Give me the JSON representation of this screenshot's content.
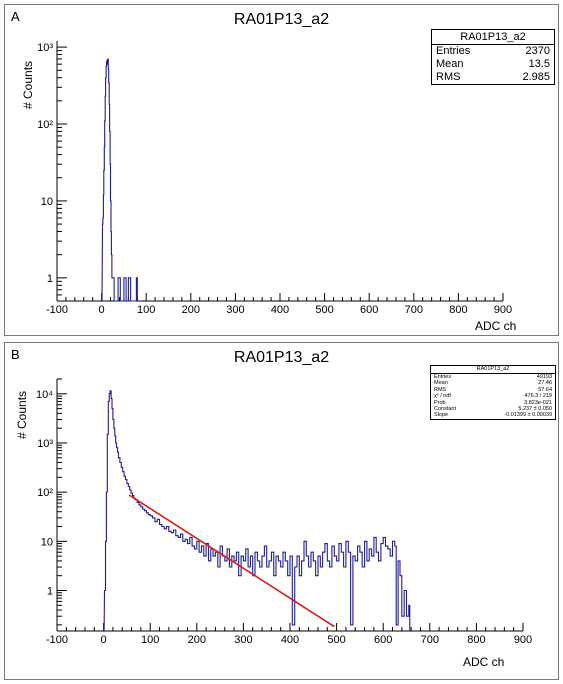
{
  "chart_data": [
    {
      "type": "histogram",
      "panel_letter": "A",
      "title": "RA01P13_a2",
      "xlabel": "ADC ch",
      "ylabel": "# Counts",
      "xlim": [
        -100,
        900
      ],
      "ylim": [
        0.5,
        1200
      ],
      "y_scale": "log",
      "x_ticks": [
        "-100",
        "0",
        "100",
        "200",
        "300",
        "400",
        "500",
        "600",
        "700",
        "800",
        "900"
      ],
      "y_ticks": [
        "1",
        "10",
        "10²",
        "10³"
      ],
      "color": "#1f1f8f",
      "stats": {
        "name": "RA01P13_a2",
        "rows": [
          {
            "label": "Entries",
            "value": "2370"
          },
          {
            "label": "Mean",
            "value": "13.5"
          },
          {
            "label": "RMS",
            "value": "2.985"
          }
        ]
      },
      "histogram": [
        [
          2,
          5
        ],
        [
          3,
          6
        ],
        [
          4,
          12
        ],
        [
          5,
          25
        ],
        [
          6,
          50
        ],
        [
          7,
          110
        ],
        [
          8,
          230
        ],
        [
          9,
          400
        ],
        [
          10,
          560
        ],
        [
          11,
          640
        ],
        [
          12,
          680
        ],
        [
          13,
          600
        ],
        [
          14,
          700
        ],
        [
          15,
          520
        ],
        [
          16,
          340
        ],
        [
          17,
          180
        ],
        [
          18,
          80
        ],
        [
          19,
          30
        ],
        [
          20,
          10
        ],
        [
          21,
          4
        ],
        [
          22,
          2
        ],
        [
          23,
          1
        ],
        [
          37,
          1
        ],
        [
          50,
          1
        ],
        [
          60,
          1
        ],
        [
          78,
          1
        ]
      ]
    },
    {
      "type": "histogram",
      "panel_letter": "B",
      "title": "RA01P13_a2",
      "xlabel": "ADC ch",
      "ylabel": "# Counts",
      "xlim": [
        -100,
        900
      ],
      "ylim": [
        0.15,
        20000
      ],
      "y_scale": "log",
      "x_ticks": [
        "-100",
        "0",
        "100",
        "200",
        "300",
        "400",
        "500",
        "600",
        "700",
        "800",
        "900"
      ],
      "y_ticks": [
        "1",
        "10",
        "10²",
        "10³",
        "10⁴"
      ],
      "color": "#1f1f8f",
      "fit_color": "#dd1a1a",
      "fit": {
        "constant": 5.237,
        "slope": -0.01399,
        "x_range": [
          55,
          495
        ]
      },
      "stats": {
        "name": "RA01P13_a2",
        "rows": [
          {
            "label": "Entries",
            "value": "49193"
          },
          {
            "label": "Mean",
            "value": "27.46"
          },
          {
            "label": "RMS",
            "value": "57.64"
          },
          {
            "label": "χ² / ndf",
            "value": "476.3 / 219"
          },
          {
            "label": "Prob",
            "value": "3.823e-021"
          },
          {
            "label": "Constant",
            "value": "5.237 ± 0.050"
          },
          {
            "label": "Slope",
            "value": "-0.01399 ± 0.00039"
          }
        ]
      },
      "histogram": [
        [
          2,
          1
        ],
        [
          4,
          10
        ],
        [
          6,
          100
        ],
        [
          8,
          1500
        ],
        [
          10,
          7000
        ],
        [
          12,
          10000
        ],
        [
          14,
          11500
        ],
        [
          16,
          8000
        ],
        [
          18,
          5000
        ],
        [
          20,
          3000
        ],
        [
          22,
          2000
        ],
        [
          24,
          1400
        ],
        [
          26,
          1000
        ],
        [
          28,
          800
        ],
        [
          30,
          650
        ],
        [
          32,
          500
        ],
        [
          35,
          400
        ],
        [
          38,
          320
        ],
        [
          41,
          260
        ],
        [
          44,
          210
        ],
        [
          47,
          180
        ],
        [
          50,
          150
        ],
        [
          53,
          130
        ],
        [
          56,
          110
        ],
        [
          59,
          95
        ],
        [
          62,
          85
        ],
        [
          65,
          75
        ],
        [
          68,
          70
        ],
        [
          72,
          62
        ],
        [
          76,
          55
        ],
        [
          80,
          50
        ],
        [
          84,
          45
        ],
        [
          88,
          42
        ],
        [
          92,
          38
        ],
        [
          96,
          35
        ],
        [
          100,
          33
        ],
        [
          105,
          30
        ],
        [
          110,
          25
        ],
        [
          115,
          28
        ],
        [
          120,
          22
        ],
        [
          125,
          20
        ],
        [
          130,
          18
        ],
        [
          135,
          20
        ],
        [
          140,
          16
        ],
        [
          145,
          15
        ],
        [
          150,
          17
        ],
        [
          155,
          13
        ],
        [
          160,
          12
        ],
        [
          165,
          14
        ],
        [
          170,
          10
        ],
        [
          175,
          11
        ],
        [
          180,
          9
        ],
        [
          185,
          12
        ],
        [
          190,
          8
        ],
        [
          195,
          7
        ],
        [
          200,
          10
        ],
        [
          205,
          6
        ],
        [
          210,
          8
        ],
        [
          215,
          5
        ],
        [
          220,
          9
        ],
        [
          225,
          4
        ],
        [
          230,
          7
        ],
        [
          235,
          5
        ],
        [
          240,
          6
        ],
        [
          245,
          3
        ],
        [
          250,
          8
        ],
        [
          255,
          5
        ],
        [
          260,
          4
        ],
        [
          265,
          7
        ],
        [
          270,
          3
        ],
        [
          275,
          5
        ],
        [
          280,
          4
        ],
        [
          285,
          6
        ],
        [
          290,
          2
        ],
        [
          295,
          5
        ],
        [
          300,
          4
        ],
        [
          305,
          7
        ],
        [
          310,
          3
        ],
        [
          315,
          5
        ],
        [
          320,
          2
        ],
        [
          325,
          6
        ],
        [
          330,
          4
        ],
        [
          335,
          3
        ],
        [
          340,
          5
        ],
        [
          345,
          8
        ],
        [
          350,
          3
        ],
        [
          355,
          4
        ],
        [
          360,
          6
        ],
        [
          365,
          2
        ],
        [
          370,
          5
        ],
        [
          375,
          4
        ],
        [
          380,
          3
        ],
        [
          385,
          6
        ],
        [
          390,
          4
        ],
        [
          395,
          2
        ],
        [
          400,
          5
        ],
        [
          405,
          0.2
        ],
        [
          410,
          3
        ],
        [
          415,
          5
        ],
        [
          420,
          2
        ],
        [
          425,
          4
        ],
        [
          430,
          10
        ],
        [
          435,
          5
        ],
        [
          440,
          3
        ],
        [
          445,
          6
        ],
        [
          450,
          4
        ],
        [
          455,
          2
        ],
        [
          460,
          5
        ],
        [
          465,
          3
        ],
        [
          470,
          6
        ],
        [
          475,
          9
        ],
        [
          480,
          4
        ],
        [
          485,
          3
        ],
        [
          490,
          8
        ],
        [
          495,
          5
        ],
        [
          500,
          4
        ],
        [
          505,
          9
        ],
        [
          510,
          6
        ],
        [
          515,
          3
        ],
        [
          520,
          10
        ],
        [
          525,
          6
        ],
        [
          530,
          0.2
        ],
        [
          535,
          5
        ],
        [
          540,
          4
        ],
        [
          545,
          8
        ],
        [
          550,
          6
        ],
        [
          555,
          3
        ],
        [
          560,
          10
        ],
        [
          565,
          4
        ],
        [
          570,
          7
        ],
        [
          575,
          5
        ],
        [
          580,
          12
        ],
        [
          585,
          6
        ],
        [
          590,
          4
        ],
        [
          595,
          9
        ],
        [
          600,
          12
        ],
        [
          605,
          8
        ],
        [
          610,
          7
        ],
        [
          615,
          5
        ],
        [
          620,
          10
        ],
        [
          625,
          8
        ],
        [
          628,
          0.2
        ],
        [
          632,
          4
        ],
        [
          636,
          2
        ],
        [
          640,
          0.3
        ],
        [
          645,
          1
        ],
        [
          650,
          0.3
        ],
        [
          655,
          0.5
        ]
      ]
    }
  ]
}
